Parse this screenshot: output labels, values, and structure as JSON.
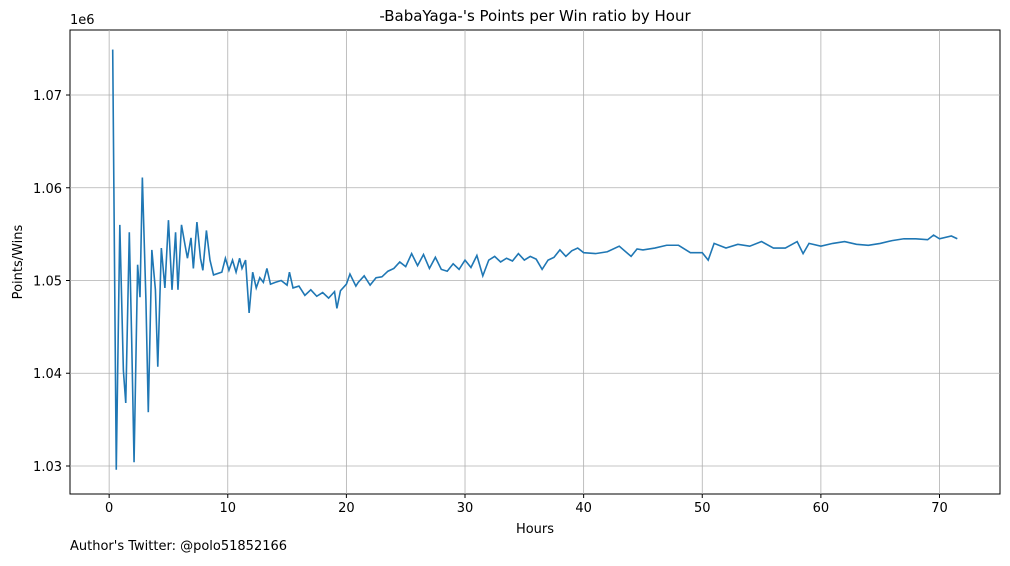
{
  "chart_data": {
    "type": "line",
    "title": "-BabaYaga-'s Points per Win ratio by Hour",
    "x_label": "Hours",
    "y_label": "Points/Wins",
    "y_offset_label": "1e6",
    "footer": "Author's Twitter: @polo51852166",
    "grid": true,
    "x": [
      0.3,
      0.6,
      0.9,
      1.2,
      1.4,
      1.7,
      1.9,
      2.1,
      2.4,
      2.6,
      2.8,
      3.1,
      3.3,
      3.6,
      3.9,
      4.1,
      4.4,
      4.7,
      5.0,
      5.3,
      5.6,
      5.8,
      6.1,
      6.4,
      6.6,
      6.9,
      7.1,
      7.4,
      7.7,
      7.9,
      8.2,
      8.5,
      8.8,
      9.5,
      9.8,
      10.1,
      10.4,
      10.7,
      11.0,
      11.2,
      11.5,
      11.8,
      12.1,
      12.4,
      12.7,
      13.0,
      13.3,
      13.6,
      14.0,
      14.5,
      15.0,
      15.2,
      15.5,
      16.0,
      16.5,
      17.0,
      17.5,
      18.0,
      18.5,
      19.0,
      19.2,
      19.5,
      20.0,
      20.3,
      20.8,
      21.0,
      21.5,
      22.0,
      22.5,
      23.0,
      23.5,
      24.0,
      24.5,
      25.0,
      25.5,
      26.0,
      26.5,
      27.0,
      27.5,
      28.0,
      28.5,
      29.0,
      29.5,
      30.0,
      30.5,
      31.0,
      31.5,
      32.0,
      32.5,
      33.0,
      33.5,
      34.0,
      34.5,
      35.0,
      35.5,
      36.0,
      36.5,
      37.0,
      37.5,
      38.0,
      38.5,
      39.0,
      39.5,
      40.0,
      41.0,
      42.0,
      43.0,
      44.0,
      44.5,
      45.0,
      46.0,
      47.0,
      48.0,
      49.0,
      50.0,
      50.5,
      51.0,
      52.0,
      53.0,
      54.0,
      55.0,
      56.0,
      57.0,
      58.0,
      58.5,
      59.0,
      60.0,
      61.0,
      62.0,
      63.0,
      64.0,
      65.0,
      66.0,
      67.0,
      68.0,
      69.0,
      69.5,
      70.0,
      71.0,
      71.5
    ],
    "values": [
      1074900,
      1029600,
      1056000,
      1040300,
      1036800,
      1055200,
      1043600,
      1030400,
      1051700,
      1048200,
      1061100,
      1047900,
      1035800,
      1053300,
      1049000,
      1040700,
      1053500,
      1049200,
      1056500,
      1049000,
      1055200,
      1049000,
      1056000,
      1053800,
      1052400,
      1054600,
      1051300,
      1056300,
      1052400,
      1051100,
      1055400,
      1052200,
      1050600,
      1050900,
      1052400,
      1051100,
      1052200,
      1050900,
      1052400,
      1051300,
      1052200,
      1046500,
      1050900,
      1049200,
      1050300,
      1049800,
      1051300,
      1049600,
      1049800,
      1050000,
      1049500,
      1050900,
      1049200,
      1049400,
      1048400,
      1049000,
      1048300,
      1048700,
      1048100,
      1048800,
      1047000,
      1048900,
      1049600,
      1050700,
      1049400,
      1049800,
      1050500,
      1049500,
      1050300,
      1050400,
      1051000,
      1051300,
      1052000,
      1051500,
      1052900,
      1051600,
      1052800,
      1051300,
      1052500,
      1051200,
      1051000,
      1051800,
      1051200,
      1052200,
      1051400,
      1052700,
      1050500,
      1052200,
      1052600,
      1052000,
      1052400,
      1052100,
      1052900,
      1052200,
      1052600,
      1052300,
      1051200,
      1052200,
      1052500,
      1053300,
      1052600,
      1053200,
      1053500,
      1053000,
      1052900,
      1053100,
      1053700,
      1052600,
      1053400,
      1053300,
      1053500,
      1053800,
      1053800,
      1053000,
      1053000,
      1052200,
      1054000,
      1053500,
      1053900,
      1053700,
      1054200,
      1053500,
      1053500,
      1054200,
      1052900,
      1054000,
      1053700,
      1054000,
      1054200,
      1053900,
      1053800,
      1054000,
      1054300,
      1054500,
      1054500,
      1054400,
      1054900,
      1054500,
      1054800,
      1054500
    ],
    "color": "#1f77b4",
    "xlim": [
      -3.3,
      75.1
    ],
    "ylim": [
      1026980,
      1077010
    ],
    "xticks": [
      0,
      10,
      20,
      30,
      40,
      50,
      60,
      70
    ],
    "yticks": [
      {
        "value": 1030000,
        "label": "1.03"
      },
      {
        "value": 1040000,
        "label": "1.04"
      },
      {
        "value": 1050000,
        "label": "1.05"
      },
      {
        "value": 1060000,
        "label": "1.06"
      },
      {
        "value": 1070000,
        "label": "1.07"
      }
    ]
  }
}
